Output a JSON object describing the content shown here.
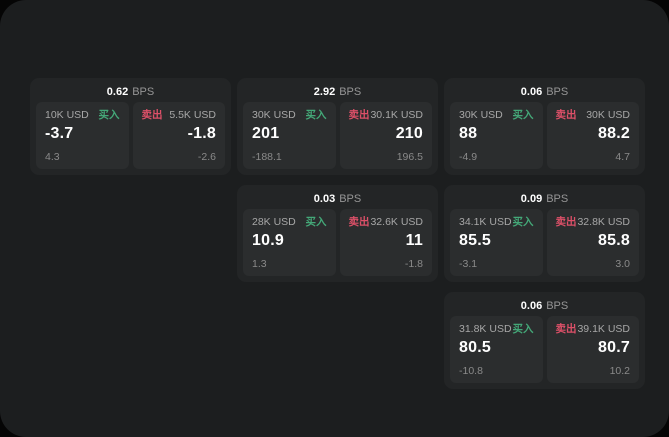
{
  "labels": {
    "bps_unit": "BPS",
    "buy": "买入",
    "sell": "卖出"
  },
  "colors": {
    "buy": "#44a878",
    "sell": "#dd5068",
    "panel_bg": "#1c1e1f",
    "card_bg": "#232526",
    "pane_bg": "#2b2d2e"
  },
  "cards": [
    {
      "bps": "0.62",
      "buy": {
        "size": "10K USD",
        "value": "-3.7",
        "delta": "4.3"
      },
      "sell": {
        "size": "5.5K USD",
        "value": "-1.8",
        "delta": "-2.6"
      }
    },
    {
      "bps": "2.92",
      "buy": {
        "size": "30K USD",
        "value": "201",
        "delta": "-188.1"
      },
      "sell": {
        "size": "30.1K USD",
        "value": "210",
        "delta": "196.5"
      }
    },
    {
      "bps": "0.06",
      "buy": {
        "size": "30K USD",
        "value": "88",
        "delta": "-4.9"
      },
      "sell": {
        "size": "30K USD",
        "value": "88.2",
        "delta": "4.7"
      }
    },
    {
      "bps": "0.03",
      "buy": {
        "size": "28K USD",
        "value": "10.9",
        "delta": "1.3"
      },
      "sell": {
        "size": "32.6K USD",
        "value": "11",
        "delta": "-1.8"
      }
    },
    {
      "bps": "0.09",
      "buy": {
        "size": "34.1K USD",
        "value": "85.5",
        "delta": "-3.1"
      },
      "sell": {
        "size": "32.8K USD",
        "value": "85.8",
        "delta": "3.0"
      }
    },
    {
      "bps": "0.06",
      "buy": {
        "size": "31.8K USD",
        "value": "80.5",
        "delta": "-10.8"
      },
      "sell": {
        "size": "39.1K USD",
        "value": "80.7",
        "delta": "10.2"
      }
    }
  ]
}
